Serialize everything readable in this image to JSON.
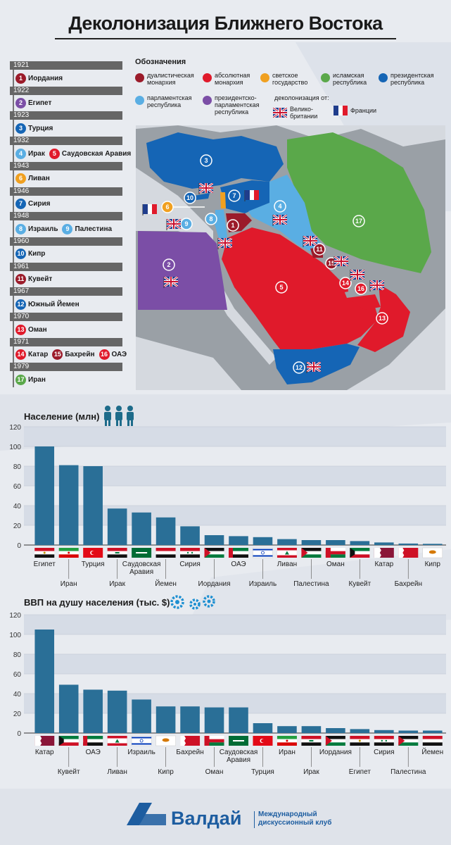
{
  "title": "Деколонизация Ближнего Востока",
  "colors": {
    "dual_monarchy": "#9b1b2a",
    "absolute_monarchy": "#e01a2b",
    "secular": "#f0a020",
    "islamic": "#5aa84a",
    "presidential": "#1565b5",
    "parliamentary": "#5aaee3",
    "pres_parl": "#7b4ea6"
  },
  "timeline": [
    {
      "year": "1921",
      "entries": [
        {
          "num": "1",
          "name": "Иордания",
          "type": "dual_monarchy"
        }
      ]
    },
    {
      "year": "1922",
      "entries": [
        {
          "num": "2",
          "name": "Египет",
          "type": "pres_parl"
        }
      ]
    },
    {
      "year": "1923",
      "entries": [
        {
          "num": "3",
          "name": "Турция",
          "type": "presidential"
        }
      ]
    },
    {
      "year": "1932",
      "entries": [
        {
          "num": "4",
          "name": "Ирак",
          "type": "parliamentary"
        },
        {
          "num": "5",
          "name": "Саудовская Аравия",
          "type": "absolute_monarchy"
        }
      ]
    },
    {
      "year": "1943",
      "entries": [
        {
          "num": "6",
          "name": "Ливан",
          "type": "secular"
        }
      ]
    },
    {
      "year": "1946",
      "entries": [
        {
          "num": "7",
          "name": "Сирия",
          "type": "presidential"
        }
      ]
    },
    {
      "year": "1948",
      "entries": [
        {
          "num": "8",
          "name": "Израиль",
          "type": "parliamentary"
        },
        {
          "num": "9",
          "name": "Палестина",
          "type": "parliamentary"
        }
      ]
    },
    {
      "year": "1960",
      "entries": [
        {
          "num": "10",
          "name": "Кипр",
          "type": "presidential"
        }
      ]
    },
    {
      "year": "1961",
      "entries": [
        {
          "num": "11",
          "name": "Кувейт",
          "type": "dual_monarchy"
        }
      ]
    },
    {
      "year": "1967",
      "entries": [
        {
          "num": "12",
          "name": "Южный Йемен",
          "type": "presidential"
        }
      ]
    },
    {
      "year": "1970",
      "entries": [
        {
          "num": "13",
          "name": "Оман",
          "type": "absolute_monarchy"
        }
      ]
    },
    {
      "year": "1971",
      "entries": [
        {
          "num": "14",
          "name": "Катар",
          "type": "absolute_monarchy"
        },
        {
          "num": "15",
          "name": "Бахрейн",
          "type": "dual_monarchy"
        },
        {
          "num": "16",
          "name": "ОАЭ",
          "type": "absolute_monarchy"
        }
      ]
    },
    {
      "year": "1979",
      "entries": [
        {
          "num": "17",
          "name": "Иран",
          "type": "islamic"
        }
      ]
    }
  ],
  "legend": {
    "title": "Обозначения",
    "items": [
      {
        "label": "дуалистическая монархия",
        "color": "#9b1b2a"
      },
      {
        "label": "абсолютная монархия",
        "color": "#e01a2b"
      },
      {
        "label": "светское государство",
        "color": "#f0a020"
      },
      {
        "label": "исламская республика",
        "color": "#5aa84a"
      },
      {
        "label": "президентская республика",
        "color": "#1565b5"
      },
      {
        "label": "парламентская республика",
        "color": "#5aaee3"
      },
      {
        "label": "президентско-парламентская республика",
        "color": "#7b4ea6"
      }
    ],
    "decol_label": "деколонизация от:",
    "uk_label": "Велико-британии",
    "fr_label": "Франции"
  },
  "chart_data": [
    {
      "type": "bar",
      "title": "Население (млн)",
      "ylim": [
        0,
        120
      ],
      "yticks": [
        0,
        20,
        40,
        60,
        80,
        100,
        120
      ],
      "categories": [
        "Египет",
        "Иран",
        "Турция",
        "Ирак",
        "Саудовская Аравия",
        "Йемен",
        "Сирия",
        "Иордания",
        "ОАЭ",
        "Израиль",
        "Ливан",
        "Палестина",
        "Оман",
        "Кувейт",
        "Катар",
        "Бахрейн",
        "Кипр"
      ],
      "values": [
        100,
        81,
        80,
        37,
        33,
        28,
        19,
        10,
        9,
        8,
        6,
        5,
        5,
        4,
        2.6,
        1.5,
        1.2
      ]
    },
    {
      "type": "bar",
      "title": "ВВП на душу населения (тыс. $)",
      "ylim": [
        0,
        120
      ],
      "yticks": [
        0,
        20,
        40,
        60,
        80,
        100,
        120
      ],
      "categories": [
        "Катар",
        "Кувейт",
        "ОАЭ",
        "Ливан",
        "Израиль",
        "Кипр",
        "Бахрейн",
        "Оман",
        "Саудовская Аравия",
        "Турция",
        "Иран",
        "Ирак",
        "Иордания",
        "Египет",
        "Сирия",
        "Палестина",
        "Йемен"
      ],
      "values": [
        105,
        49,
        44,
        43,
        34,
        27,
        27,
        26,
        26,
        10,
        7,
        7,
        5,
        4,
        3,
        2.5,
        2.5
      ]
    }
  ],
  "footer": {
    "brand": "Валдай",
    "subtitle_1": "Международный",
    "subtitle_2": "дискуссионный клуб"
  }
}
